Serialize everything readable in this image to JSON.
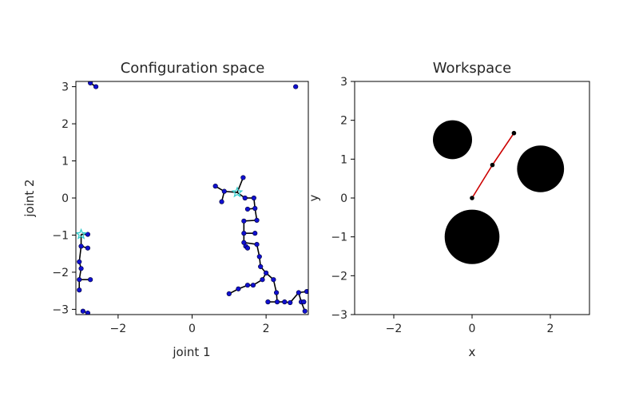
{
  "chart_data": [
    {
      "type": "scatter",
      "title": "Configuration space",
      "xlabel": "joint 1",
      "ylabel": "joint 2",
      "xlim": [
        -3.14159,
        3.14159
      ],
      "ylim": [
        -3.14159,
        3.14159
      ],
      "xticks": [
        -2,
        0,
        2
      ],
      "yticks": [
        -3,
        -2,
        -1,
        0,
        1,
        2,
        3
      ],
      "grid": false,
      "node_color": "#1010d0",
      "edge_color": "#000000",
      "start": [
        1.22,
        0.15
      ],
      "goal": [
        -3.0,
        -0.98
      ],
      "marker_color": "#33cccc",
      "edges": [
        [
          [
            1.22,
            0.15
          ],
          [
            1.38,
            0.55
          ]
        ],
        [
          [
            1.22,
            0.15
          ],
          [
            0.87,
            0.18
          ]
        ],
        [
          [
            0.87,
            0.18
          ],
          [
            0.8,
            -0.1
          ]
        ],
        [
          [
            0.87,
            0.18
          ],
          [
            0.63,
            0.32
          ]
        ],
        [
          [
            1.22,
            0.15
          ],
          [
            1.43,
            0.0
          ]
        ],
        [
          [
            1.43,
            0.0
          ],
          [
            1.67,
            0.0
          ]
        ],
        [
          [
            1.67,
            0.0
          ],
          [
            1.7,
            -0.28
          ]
        ],
        [
          [
            1.7,
            -0.28
          ],
          [
            1.5,
            -0.3
          ]
        ],
        [
          [
            1.7,
            -0.28
          ],
          [
            1.75,
            -0.6
          ]
        ],
        [
          [
            1.75,
            -0.6
          ],
          [
            1.4,
            -0.62
          ]
        ],
        [
          [
            1.4,
            -0.62
          ],
          [
            1.4,
            -0.95
          ]
        ],
        [
          [
            1.4,
            -0.95
          ],
          [
            1.7,
            -0.95
          ]
        ],
        [
          [
            1.4,
            -0.95
          ],
          [
            1.4,
            -1.2
          ]
        ],
        [
          [
            1.4,
            -1.2
          ],
          [
            1.45,
            -1.3
          ]
        ],
        [
          [
            1.45,
            -1.3
          ],
          [
            1.5,
            -1.35
          ]
        ],
        [
          [
            1.4,
            -1.2
          ],
          [
            1.75,
            -1.25
          ]
        ],
        [
          [
            1.75,
            -1.25
          ],
          [
            1.82,
            -1.58
          ]
        ],
        [
          [
            1.82,
            -1.58
          ],
          [
            1.85,
            -1.85
          ]
        ],
        [
          [
            1.85,
            -1.85
          ],
          [
            2.0,
            -2.02
          ]
        ],
        [
          [
            2.0,
            -2.02
          ],
          [
            2.2,
            -2.2
          ]
        ],
        [
          [
            2.2,
            -2.2
          ],
          [
            2.28,
            -2.55
          ]
        ],
        [
          [
            2.28,
            -2.55
          ],
          [
            2.3,
            -2.8
          ]
        ],
        [
          [
            2.3,
            -2.8
          ],
          [
            2.05,
            -2.8
          ]
        ],
        [
          [
            2.3,
            -2.8
          ],
          [
            2.5,
            -2.8
          ]
        ],
        [
          [
            2.5,
            -2.8
          ],
          [
            2.65,
            -2.82
          ]
        ],
        [
          [
            2.0,
            -2.02
          ],
          [
            1.9,
            -2.2
          ]
        ],
        [
          [
            1.9,
            -2.2
          ],
          [
            1.65,
            -2.35
          ]
        ],
        [
          [
            1.65,
            -2.35
          ],
          [
            1.5,
            -2.35
          ]
        ],
        [
          [
            1.5,
            -2.35
          ],
          [
            1.25,
            -2.45
          ]
        ],
        [
          [
            1.25,
            -2.45
          ],
          [
            1.0,
            -2.58
          ]
        ],
        [
          [
            2.65,
            -2.82
          ],
          [
            2.88,
            -2.55
          ]
        ],
        [
          [
            2.88,
            -2.55
          ],
          [
            3.1,
            -2.52
          ]
        ],
        [
          [
            2.88,
            -2.55
          ],
          [
            2.95,
            -2.8
          ]
        ],
        [
          [
            2.95,
            -2.8
          ],
          [
            3.02,
            -2.8
          ]
        ],
        [
          [
            2.95,
            -2.8
          ],
          [
            3.05,
            -3.05
          ]
        ],
        [
          [
            -3.0,
            -0.98
          ],
          [
            -2.82,
            -0.98
          ]
        ],
        [
          [
            -3.0,
            -0.98
          ],
          [
            -3.0,
            -1.3
          ]
        ],
        [
          [
            -3.0,
            -1.3
          ],
          [
            -2.82,
            -1.35
          ]
        ],
        [
          [
            -3.0,
            -1.3
          ],
          [
            -3.05,
            -1.72
          ]
        ],
        [
          [
            -3.05,
            -1.72
          ],
          [
            -3.0,
            -1.9
          ]
        ],
        [
          [
            -3.0,
            -1.9
          ],
          [
            -3.05,
            -2.2
          ]
        ],
        [
          [
            -3.05,
            -2.2
          ],
          [
            -2.75,
            -2.2
          ]
        ],
        [
          [
            -3.05,
            -2.2
          ],
          [
            -3.05,
            -2.48
          ]
        ],
        [
          [
            -2.95,
            -3.05
          ],
          [
            -2.82,
            -3.1
          ]
        ],
        [
          [
            -2.75,
            3.1
          ],
          [
            -2.6,
            3.0
          ]
        ]
      ],
      "nodes": [
        [
          1.38,
          0.55
        ],
        [
          0.87,
          0.18
        ],
        [
          0.8,
          -0.1
        ],
        [
          0.63,
          0.32
        ],
        [
          1.43,
          0.0
        ],
        [
          1.67,
          0.0
        ],
        [
          1.7,
          -0.28
        ],
        [
          1.5,
          -0.3
        ],
        [
          1.75,
          -0.6
        ],
        [
          1.4,
          -0.62
        ],
        [
          1.4,
          -0.95
        ],
        [
          1.7,
          -0.95
        ],
        [
          1.4,
          -1.2
        ],
        [
          1.45,
          -1.3
        ],
        [
          1.5,
          -1.35
        ],
        [
          1.75,
          -1.25
        ],
        [
          1.82,
          -1.58
        ],
        [
          1.85,
          -1.85
        ],
        [
          2.0,
          -2.02
        ],
        [
          2.2,
          -2.2
        ],
        [
          2.28,
          -2.55
        ],
        [
          2.3,
          -2.8
        ],
        [
          2.05,
          -2.8
        ],
        [
          2.5,
          -2.8
        ],
        [
          2.65,
          -2.82
        ],
        [
          1.9,
          -2.2
        ],
        [
          1.65,
          -2.35
        ],
        [
          1.5,
          -2.35
        ],
        [
          1.25,
          -2.45
        ],
        [
          1.0,
          -2.58
        ],
        [
          2.88,
          -2.55
        ],
        [
          3.1,
          -2.52
        ],
        [
          2.95,
          -2.8
        ],
        [
          3.02,
          -2.8
        ],
        [
          3.05,
          -3.05
        ],
        [
          -2.82,
          -0.98
        ],
        [
          -3.0,
          -1.3
        ],
        [
          -2.82,
          -1.35
        ],
        [
          -3.05,
          -1.72
        ],
        [
          -3.0,
          -1.9
        ],
        [
          -3.05,
          -2.2
        ],
        [
          -2.75,
          -2.2
        ],
        [
          -3.05,
          -2.48
        ],
        [
          -2.95,
          -3.05
        ],
        [
          -2.82,
          -3.1
        ],
        [
          -2.75,
          3.1
        ],
        [
          -2.6,
          3.0
        ],
        [
          2.8,
          3.0
        ]
      ]
    },
    {
      "type": "scatter",
      "title": "Workspace",
      "xlabel": "x",
      "ylabel": "y",
      "xlim": [
        -3,
        3
      ],
      "ylim": [
        -3,
        3
      ],
      "xticks": [
        -2,
        0,
        2
      ],
      "yticks": [
        -3,
        -2,
        -1,
        0,
        1,
        2,
        3
      ],
      "grid": false,
      "obstacles": [
        {
          "x": -0.5,
          "y": 1.5,
          "r": 0.5
        },
        {
          "x": 1.75,
          "y": 0.75,
          "r": 0.6
        },
        {
          "x": 0.0,
          "y": -1.0,
          "r": 0.7
        }
      ],
      "obstacle_color": "#000000",
      "arm": {
        "joints": [
          [
            0.0,
            0.0
          ],
          [
            0.52,
            0.85
          ],
          [
            1.07,
            1.67
          ]
        ],
        "link_color": "#cc0000",
        "joint_color": "#000000"
      }
    }
  ]
}
